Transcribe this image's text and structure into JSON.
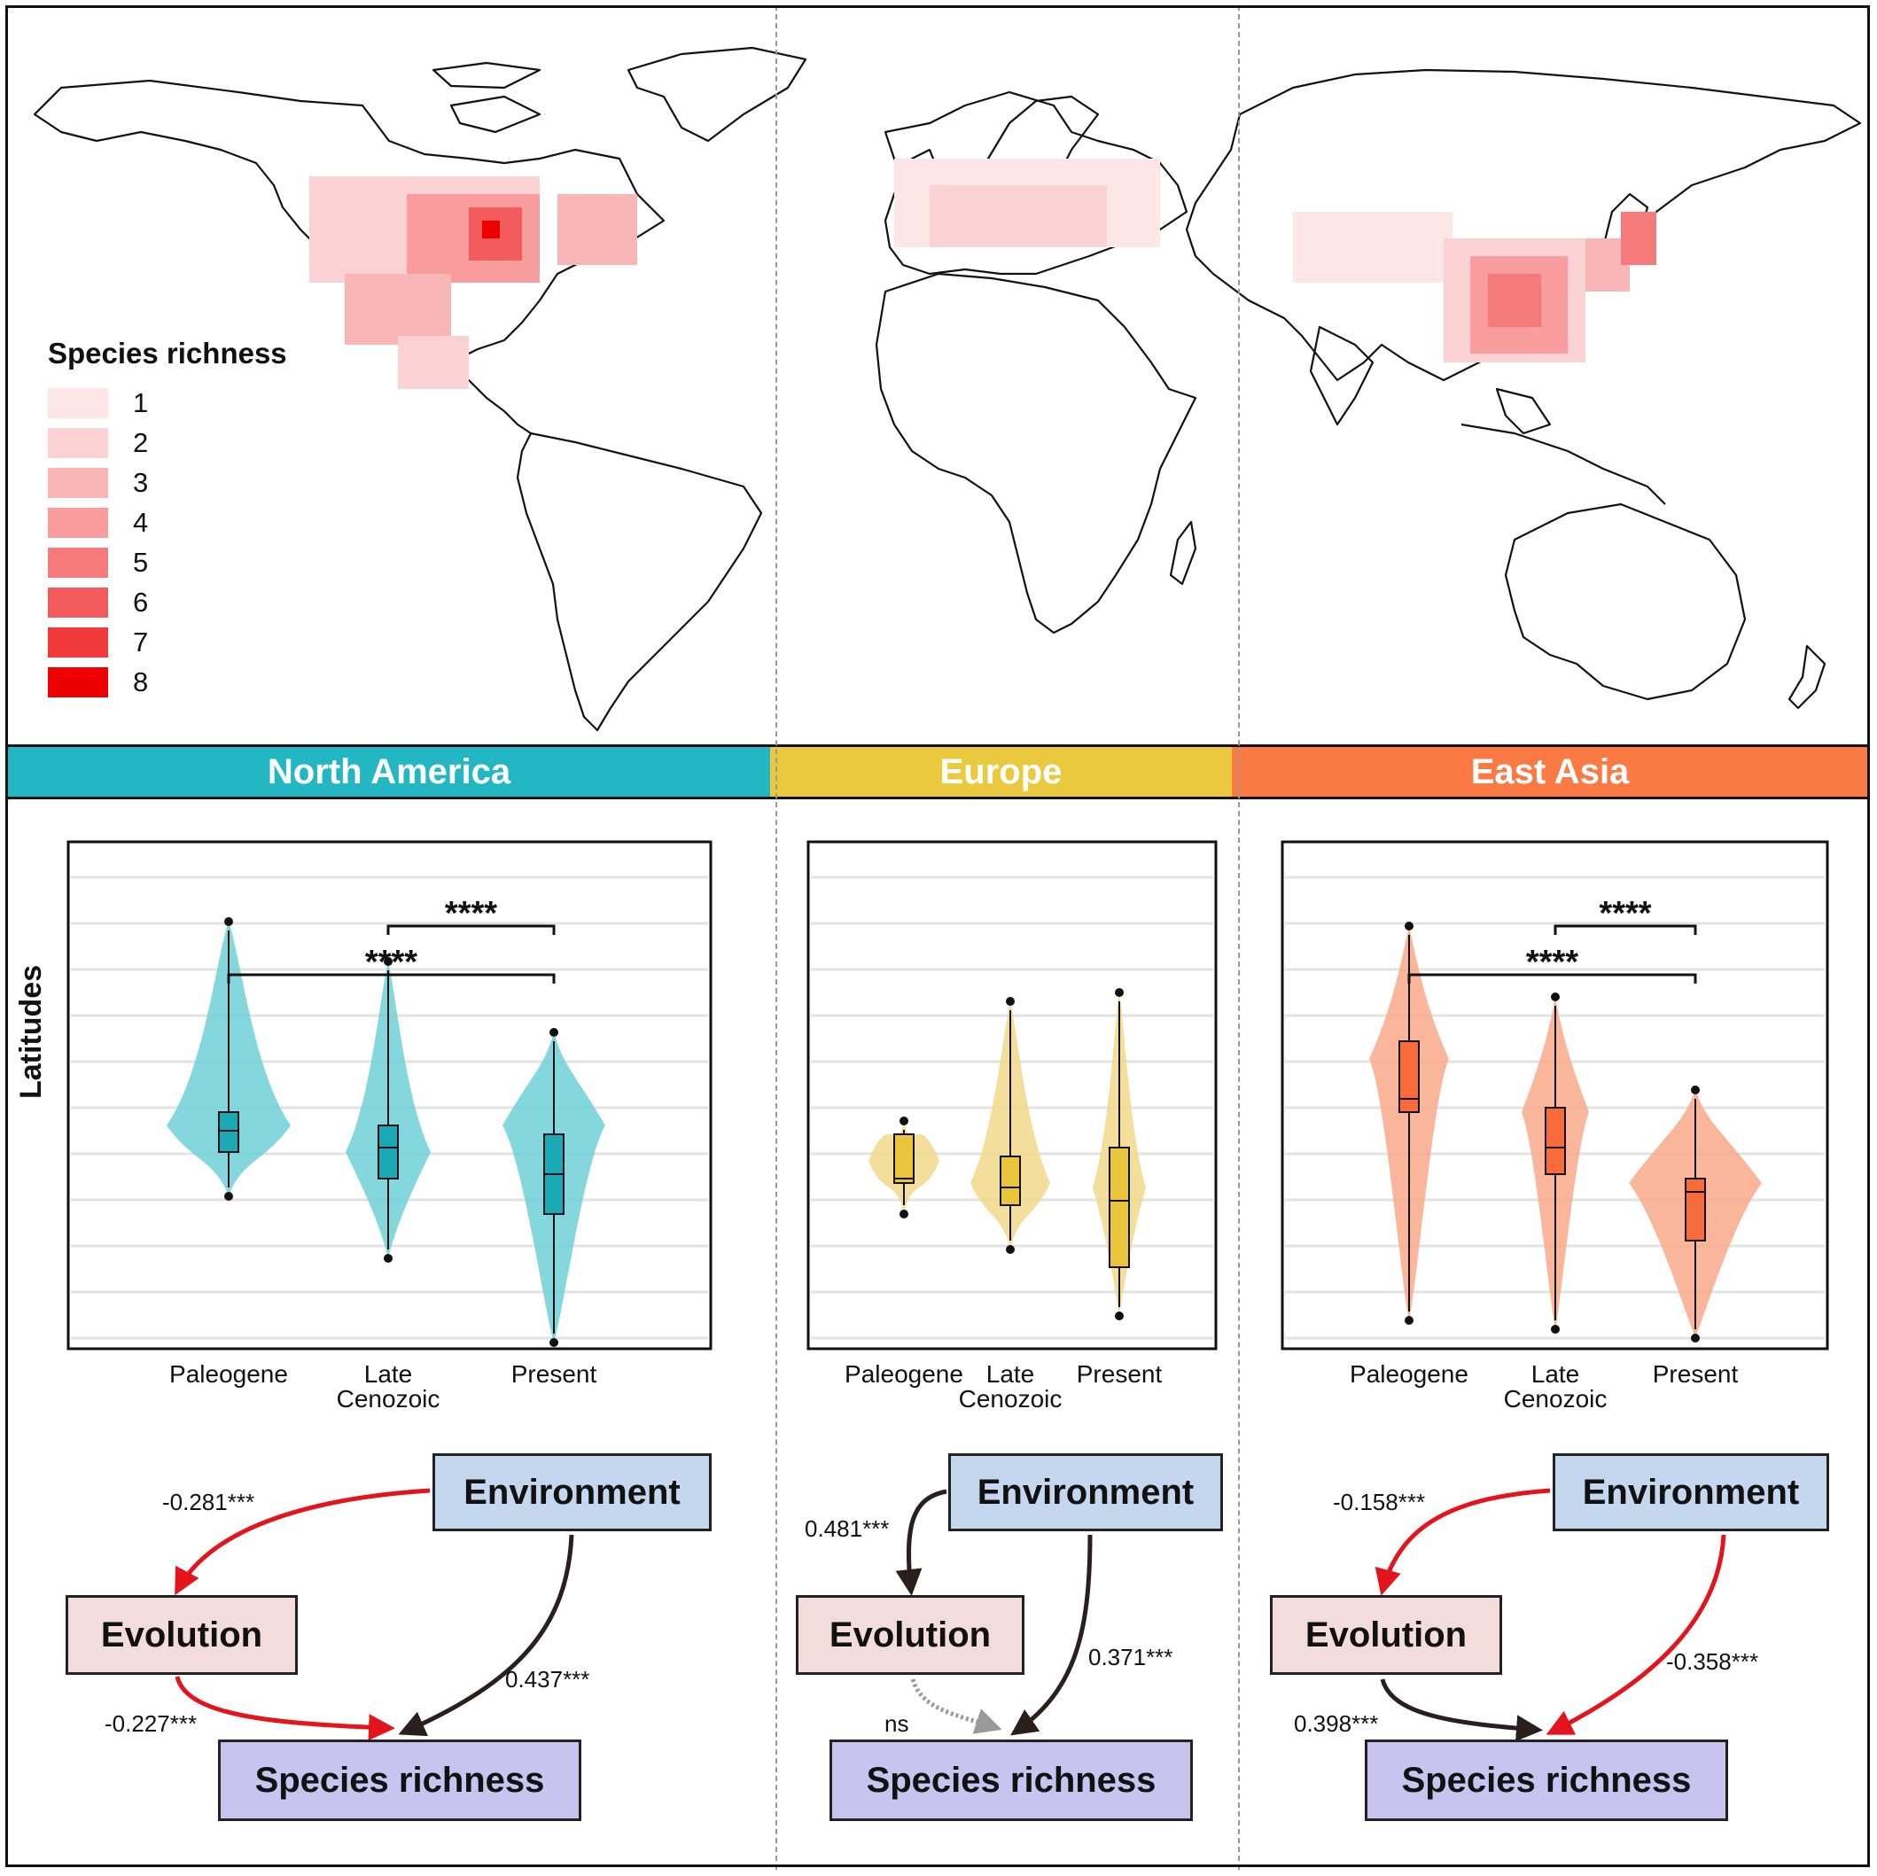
{
  "legend": {
    "title": "Species richness",
    "items": [
      {
        "label": "1",
        "color": "#fce6e6"
      },
      {
        "label": "2",
        "color": "#fbd2d3"
      },
      {
        "label": "3",
        "color": "#f9b6b7"
      },
      {
        "label": "4",
        "color": "#f89c9d"
      },
      {
        "label": "5",
        "color": "#f57a7b"
      },
      {
        "label": "6",
        "color": "#f25c5d"
      },
      {
        "label": "7",
        "color": "#f03a3b"
      },
      {
        "label": "8",
        "color": "#ee0000"
      }
    ]
  },
  "regions": [
    {
      "name": "North America",
      "color": "#23b7c3",
      "text_color": "#ffffff"
    },
    {
      "name": "Europe",
      "color": "#ebc93f",
      "text_color": "#ffffff"
    },
    {
      "name": "East Asia",
      "color": "#fb7a44",
      "text_color": "#ffffff"
    }
  ],
  "y_axis_label": "Latitudes",
  "chart_data": [
    {
      "type": "violin",
      "region": "North America",
      "categories": [
        "Paleogene",
        "Late\nCenozoic",
        "Present"
      ],
      "color": "#6fd0d6",
      "box_color": "#1ba9b6",
      "significance": [
        {
          "from": "Late\nCenozoic",
          "to": "Present",
          "label": "****"
        },
        {
          "from": "Paleogene",
          "to": "Present",
          "label": "****"
        }
      ]
    },
    {
      "type": "violin",
      "region": "Europe",
      "categories": [
        "Paleogene",
        "Late\nCenozoic",
        "Present"
      ],
      "color": "#f1d98a",
      "box_color": "#e8c53a",
      "significance": []
    },
    {
      "type": "violin",
      "region": "East Asia",
      "categories": [
        "Paleogene",
        "Late\nCenozoic",
        "Present"
      ],
      "color": "#f9a98a",
      "box_color": "#f76c3a",
      "significance": [
        {
          "from": "Late\nCenozoic",
          "to": "Present",
          "label": "****"
        },
        {
          "from": "Paleogene",
          "to": "Present",
          "label": "****"
        }
      ]
    }
  ],
  "sem": {
    "node_labels": {
      "environment": "Environment",
      "evolution": "Evolution",
      "richness": "Species richness"
    },
    "paths": [
      {
        "region": "North America",
        "env_evo": "-0.281***",
        "env_sr": "0.437***",
        "evo_sr": "-0.227***"
      },
      {
        "region": "Europe",
        "env_evo": "0.481***",
        "env_sr": "0.371***",
        "evo_sr": "ns"
      },
      {
        "region": "East Asia",
        "env_evo": "-0.158***",
        "env_sr": "-0.358***",
        "evo_sr": "0.398***"
      }
    ]
  }
}
